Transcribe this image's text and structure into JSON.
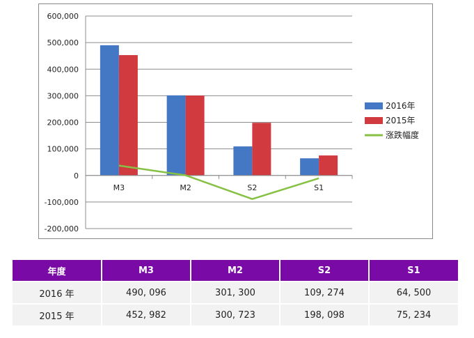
{
  "chart_data": {
    "type": "bar",
    "categories": [
      "M3",
      "M2",
      "S2",
      "S1"
    ],
    "series": [
      {
        "name": "2016年",
        "kind": "bar",
        "color": "#4477c4",
        "values": [
          490096,
          301300,
          109274,
          64500
        ]
      },
      {
        "name": "2015年",
        "kind": "bar",
        "color": "#d13a3f",
        "values": [
          452982,
          300723,
          198098,
          75234
        ]
      },
      {
        "name": "涨跌幅度",
        "kind": "line",
        "color": "#86c144",
        "values": [
          37114,
          577,
          -88824,
          -10734
        ]
      }
    ],
    "y_ticks": [
      "600,000",
      "500,000",
      "400,000",
      "300,000",
      "200,000",
      "100,000",
      "0",
      "-100,000",
      "-200,000"
    ],
    "ylim": [
      -200000,
      600000
    ],
    "grid": true,
    "legend_position": "right"
  },
  "table": {
    "headers": [
      "年度",
      "M3",
      "M2",
      "S2",
      "S1"
    ],
    "rows": [
      [
        "2016 年",
        "490, 096",
        "301, 300",
        "109, 274",
        "64, 500"
      ],
      [
        "2015 年",
        "452, 982",
        "300, 723",
        "198, 098",
        "75, 234"
      ]
    ]
  }
}
